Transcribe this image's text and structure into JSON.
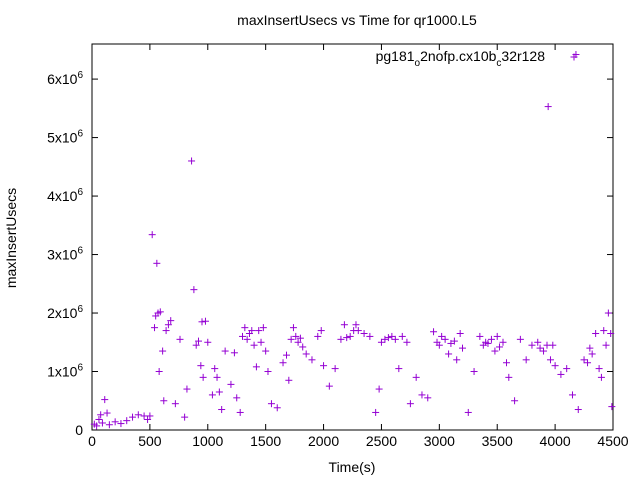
{
  "chart_data": {
    "type": "scatter",
    "title": "maxInsertUsecs vs Time for qr1000.L5",
    "xlabel": "Time(s)",
    "ylabel": "maxInsertUsecs",
    "xlim": [
      0,
      4500
    ],
    "ylim": [
      0,
      6600000
    ],
    "grid": false,
    "legend_position": "top-right",
    "x_ticks": [
      {
        "value": 0,
        "label": "0"
      },
      {
        "value": 500,
        "label": "500"
      },
      {
        "value": 1000,
        "label": "1000"
      },
      {
        "value": 1500,
        "label": "1500"
      },
      {
        "value": 2000,
        "label": "2000"
      },
      {
        "value": 2500,
        "label": "2500"
      },
      {
        "value": 3000,
        "label": "3000"
      },
      {
        "value": 3500,
        "label": "3500"
      },
      {
        "value": 4000,
        "label": "4000"
      },
      {
        "value": 4500,
        "label": "4500"
      }
    ],
    "y_ticks": [
      {
        "value": 0,
        "mantissa": "0",
        "exp": ""
      },
      {
        "value": 1000000,
        "mantissa": "1x10",
        "exp": "6"
      },
      {
        "value": 2000000,
        "mantissa": "2x10",
        "exp": "6"
      },
      {
        "value": 3000000,
        "mantissa": "3x10",
        "exp": "6"
      },
      {
        "value": 4000000,
        "mantissa": "4x10",
        "exp": "6"
      },
      {
        "value": 5000000,
        "mantissa": "5x10",
        "exp": "6"
      },
      {
        "value": 6000000,
        "mantissa": "6x10",
        "exp": "6"
      }
    ],
    "series": [
      {
        "name_parts": [
          {
            "text": "pg181",
            "sub": false
          },
          {
            "text": "o",
            "sub": true
          },
          {
            "text": "2nofp.cx10b",
            "sub": false
          },
          {
            "text": "c",
            "sub": true
          },
          {
            "text": "32r128",
            "sub": false
          }
        ],
        "color": "#9400d3",
        "marker": "plus",
        "points": [
          [
            20,
            100000
          ],
          [
            40,
            70000
          ],
          [
            60,
            180000
          ],
          [
            75,
            260000
          ],
          [
            90,
            120000
          ],
          [
            110,
            520000
          ],
          [
            130,
            290000
          ],
          [
            150,
            90000
          ],
          [
            200,
            140000
          ],
          [
            250,
            110000
          ],
          [
            300,
            160000
          ],
          [
            350,
            220000
          ],
          [
            400,
            260000
          ],
          [
            450,
            240000
          ],
          [
            480,
            180000
          ],
          [
            500,
            240000
          ],
          [
            520,
            3340000
          ],
          [
            540,
            1750000
          ],
          [
            550,
            1950000
          ],
          [
            560,
            2850000
          ],
          [
            570,
            2000000
          ],
          [
            580,
            1000000
          ],
          [
            590,
            2020000
          ],
          [
            610,
            1350000
          ],
          [
            620,
            500000
          ],
          [
            640,
            1700000
          ],
          [
            660,
            1800000
          ],
          [
            680,
            1870000
          ],
          [
            720,
            450000
          ],
          [
            760,
            1550000
          ],
          [
            800,
            220000
          ],
          [
            820,
            700000
          ],
          [
            860,
            4600000
          ],
          [
            880,
            2400000
          ],
          [
            900,
            1450000
          ],
          [
            920,
            1520000
          ],
          [
            940,
            1100000
          ],
          [
            950,
            1850000
          ],
          [
            960,
            900000
          ],
          [
            980,
            1860000
          ],
          [
            1000,
            1500000
          ],
          [
            1040,
            600000
          ],
          [
            1060,
            1050000
          ],
          [
            1080,
            900000
          ],
          [
            1100,
            650000
          ],
          [
            1120,
            350000
          ],
          [
            1150,
            1350000
          ],
          [
            1200,
            780000
          ],
          [
            1230,
            1320000
          ],
          [
            1250,
            550000
          ],
          [
            1280,
            300000
          ],
          [
            1300,
            1600000
          ],
          [
            1320,
            1750000
          ],
          [
            1340,
            1550000
          ],
          [
            1360,
            1650000
          ],
          [
            1380,
            1700000
          ],
          [
            1400,
            1450000
          ],
          [
            1420,
            1080000
          ],
          [
            1440,
            1700000
          ],
          [
            1460,
            1500000
          ],
          [
            1480,
            1750000
          ],
          [
            1500,
            1350000
          ],
          [
            1520,
            1000000
          ],
          [
            1550,
            450000
          ],
          [
            1600,
            380000
          ],
          [
            1650,
            1150000
          ],
          [
            1680,
            1280000
          ],
          [
            1700,
            850000
          ],
          [
            1720,
            1550000
          ],
          [
            1740,
            1750000
          ],
          [
            1760,
            1600000
          ],
          [
            1780,
            1500000
          ],
          [
            1800,
            1570000
          ],
          [
            1820,
            1420000
          ],
          [
            1850,
            1300000
          ],
          [
            1900,
            1200000
          ],
          [
            1950,
            1600000
          ],
          [
            1980,
            1700000
          ],
          [
            2000,
            1100000
          ],
          [
            2050,
            750000
          ],
          [
            2100,
            1050000
          ],
          [
            2150,
            1550000
          ],
          [
            2180,
            1800000
          ],
          [
            2200,
            1580000
          ],
          [
            2230,
            1600000
          ],
          [
            2260,
            1700000
          ],
          [
            2280,
            1800000
          ],
          [
            2300,
            1700000
          ],
          [
            2350,
            1650000
          ],
          [
            2400,
            1600000
          ],
          [
            2450,
            300000
          ],
          [
            2480,
            700000
          ],
          [
            2500,
            1500000
          ],
          [
            2530,
            1550000
          ],
          [
            2560,
            1580000
          ],
          [
            2590,
            1600000
          ],
          [
            2620,
            1550000
          ],
          [
            2650,
            1050000
          ],
          [
            2680,
            1600000
          ],
          [
            2720,
            1500000
          ],
          [
            2750,
            450000
          ],
          [
            2800,
            900000
          ],
          [
            2850,
            600000
          ],
          [
            2900,
            550000
          ],
          [
            2950,
            1680000
          ],
          [
            2980,
            1500000
          ],
          [
            3000,
            1450000
          ],
          [
            3020,
            1600000
          ],
          [
            3050,
            1550000
          ],
          [
            3080,
            1300000
          ],
          [
            3100,
            1480000
          ],
          [
            3130,
            1520000
          ],
          [
            3150,
            1200000
          ],
          [
            3180,
            1650000
          ],
          [
            3200,
            1400000
          ],
          [
            3250,
            300000
          ],
          [
            3300,
            1000000
          ],
          [
            3350,
            1600000
          ],
          [
            3380,
            1450000
          ],
          [
            3400,
            1500000
          ],
          [
            3420,
            1480000
          ],
          [
            3450,
            1550000
          ],
          [
            3480,
            1350000
          ],
          [
            3500,
            1600000
          ],
          [
            3520,
            1420000
          ],
          [
            3550,
            1500000
          ],
          [
            3580,
            1150000
          ],
          [
            3600,
            900000
          ],
          [
            3650,
            500000
          ],
          [
            3700,
            1550000
          ],
          [
            3750,
            1200000
          ],
          [
            3800,
            1450000
          ],
          [
            3850,
            1500000
          ],
          [
            3870,
            1400000
          ],
          [
            3900,
            1350000
          ],
          [
            3930,
            1450000
          ],
          [
            3940,
            5530000
          ],
          [
            3960,
            1200000
          ],
          [
            3980,
            1450000
          ],
          [
            4000,
            1100000
          ],
          [
            4050,
            950000
          ],
          [
            4100,
            1050000
          ],
          [
            4150,
            600000
          ],
          [
            4180,
            6420000
          ],
          [
            4200,
            350000
          ],
          [
            4250,
            1200000
          ],
          [
            4280,
            1150000
          ],
          [
            4300,
            1400000
          ],
          [
            4320,
            1300000
          ],
          [
            4350,
            1650000
          ],
          [
            4380,
            1050000
          ],
          [
            4400,
            900000
          ],
          [
            4420,
            1700000
          ],
          [
            4440,
            1450000
          ],
          [
            4460,
            2000000
          ],
          [
            4480,
            1650000
          ],
          [
            4490,
            400000
          ]
        ]
      }
    ]
  }
}
